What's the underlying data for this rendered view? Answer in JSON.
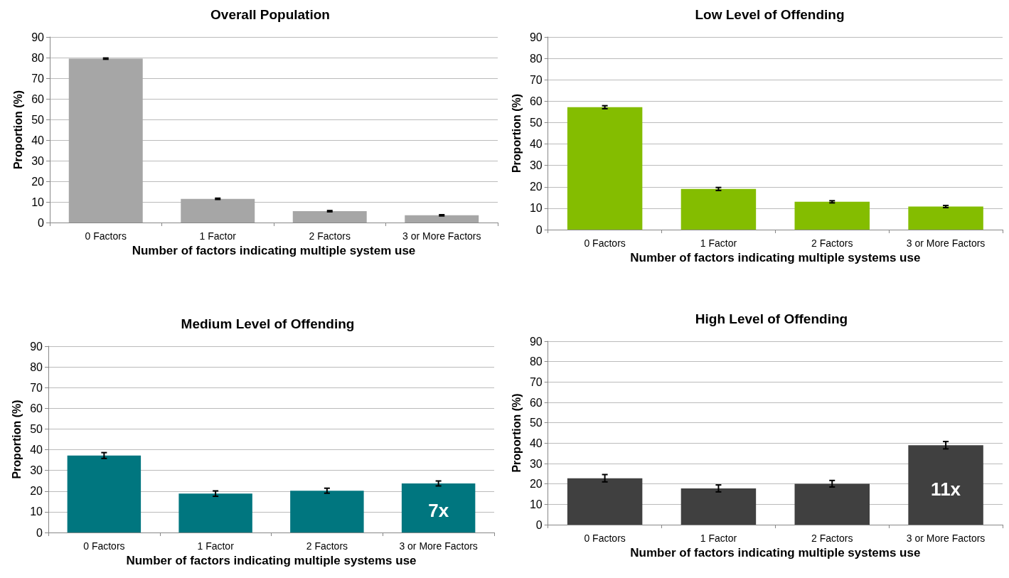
{
  "chart_data": [
    {
      "type": "bar",
      "title": "Overall Population",
      "xlabel": "Number of factors indicating multiple system use",
      "ylabel": "Proportion (%)",
      "categories": [
        "0 Factors",
        "1 Factor",
        "2 Factors",
        "3 or More Factors"
      ],
      "values": [
        79.5,
        11.5,
        5.5,
        3.5
      ],
      "errors": [
        0.3,
        0.3,
        0.3,
        0.3
      ],
      "color": "#a6a6a6",
      "ylim": [
        0,
        90
      ],
      "yticks": [
        0,
        10,
        20,
        30,
        40,
        50,
        60,
        70,
        80,
        90
      ],
      "grid": "y"
    },
    {
      "type": "bar",
      "title": "Low Level of Offending",
      "xlabel": "Number of factors indicating multiple systems use",
      "ylabel": "Proportion (%)",
      "categories": [
        "0 Factors",
        "1 Factor",
        "2 Factors",
        "3 or More Factors"
      ],
      "values": [
        57.2,
        19,
        13,
        10.8
      ],
      "errors": [
        0.7,
        0.7,
        0.5,
        0.5
      ],
      "color": "#84bd00",
      "ylim": [
        0,
        90
      ],
      "yticks": [
        0,
        10,
        20,
        30,
        40,
        50,
        60,
        70,
        80,
        90
      ],
      "grid": "y"
    },
    {
      "type": "bar",
      "title": "Medium Level of Offending",
      "xlabel": "Number of factors indicating multiple systems use",
      "ylabel": "Proportion (%)",
      "categories": [
        "0 Factors",
        "1 Factor",
        "2 Factors",
        "3 or More Factors"
      ],
      "values": [
        37.2,
        18.8,
        20.2,
        23.7
      ],
      "errors": [
        1.4,
        1.3,
        1.2,
        1.2
      ],
      "color": "#00767f",
      "ylim": [
        0,
        90
      ],
      "yticks": [
        0,
        10,
        20,
        30,
        40,
        50,
        60,
        70,
        80,
        90
      ],
      "grid": "y",
      "annotations": [
        "7x"
      ]
    },
    {
      "type": "bar",
      "title": "High Level of Offending",
      "xlabel": "Number of factors indicating multiple systems use",
      "ylabel": "Proportion (%)",
      "categories": [
        "0 Factors",
        "1 Factor",
        "2 Factors",
        "3 or More Factors"
      ],
      "values": [
        22.8,
        17.8,
        20.1,
        39
      ],
      "errors": [
        1.8,
        1.7,
        1.6,
        1.8
      ],
      "color": "#404040",
      "ylim": [
        0,
        90
      ],
      "yticks": [
        0,
        10,
        20,
        30,
        40,
        50,
        60,
        70,
        80,
        90
      ],
      "grid": "y",
      "annotations": [
        "11x"
      ]
    }
  ]
}
